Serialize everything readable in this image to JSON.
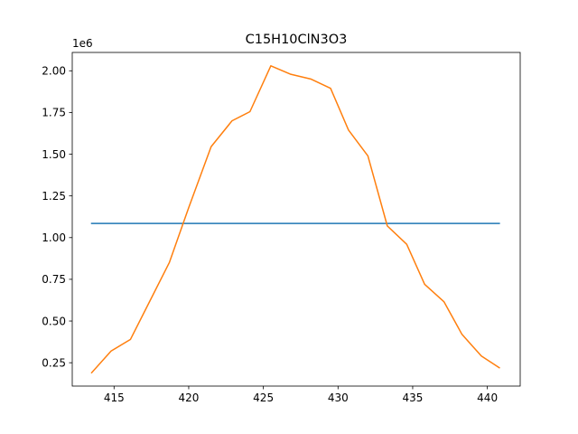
{
  "chart_data": {
    "type": "line",
    "title": "C15H10ClN3O3",
    "xlabel": "",
    "ylabel": "",
    "y_offset_label": "1e6",
    "xlim": [
      412.2,
      442.2
    ],
    "ylim": [
      110000,
      2110000
    ],
    "grid": false,
    "xticks": [
      415,
      420,
      425,
      430,
      435,
      440
    ],
    "xtick_labels": [
      "415",
      "420",
      "425",
      "430",
      "435",
      "440"
    ],
    "yticks": [
      250000,
      500000,
      750000,
      1000000,
      1250000,
      1500000,
      1750000,
      2000000
    ],
    "ytick_labels": [
      "0.25",
      "0.50",
      "0.75",
      "1.00",
      "1.25",
      "1.50",
      "1.75",
      "2.00"
    ],
    "series": [
      {
        "color": "#1f77b4",
        "x": [
          413.5,
          440.8
        ],
        "y": [
          1085000,
          1085000
        ]
      },
      {
        "color": "#ff7f0e",
        "x": [
          413.5,
          414.8,
          416.1,
          417.4,
          418.7,
          420.0,
          421.5,
          422.9,
          424.1,
          425.5,
          426.8,
          428.2,
          429.5,
          430.7,
          432.0,
          433.3,
          434.6,
          435.8,
          437.1,
          438.3,
          439.6,
          440.8
        ],
        "y": [
          190000,
          320000,
          390000,
          620000,
          850000,
          1180000,
          1545000,
          1700000,
          1755000,
          2030000,
          1980000,
          1950000,
          1895000,
          1645000,
          1490000,
          1070000,
          960000,
          720000,
          615000,
          420000,
          290000,
          220000
        ]
      }
    ]
  }
}
